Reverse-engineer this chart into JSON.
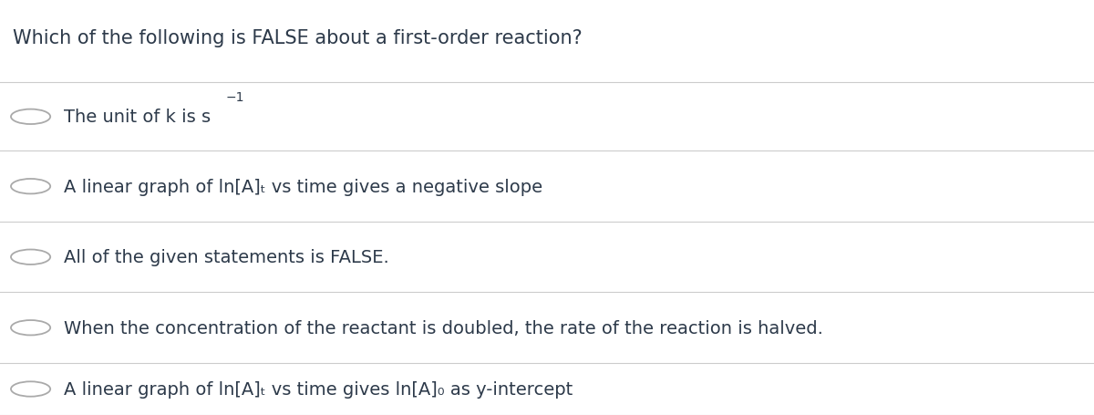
{
  "title": "Which of the following is FALSE about a first-order reaction?",
  "options": [
    "The unit of k is s⁻¹",
    "A linear graph of ln[A]ₜ vs time gives a negative slope",
    "All of the given statements is FALSE.",
    "When the concentration of the reactant is doubled, the rate of the reaction is halved.",
    "A linear graph of ln[A]ₜ vs time gives ln[A]₀ as y-intercept"
  ],
  "bg_color": "#ffffff",
  "title_color": "#2d3a4a",
  "option_color": "#2d3a4a",
  "circle_color": "#aaaaaa",
  "line_color": "#cccccc",
  "title_fontsize": 15,
  "option_fontsize": 14,
  "font_family": "DejaVu Sans"
}
